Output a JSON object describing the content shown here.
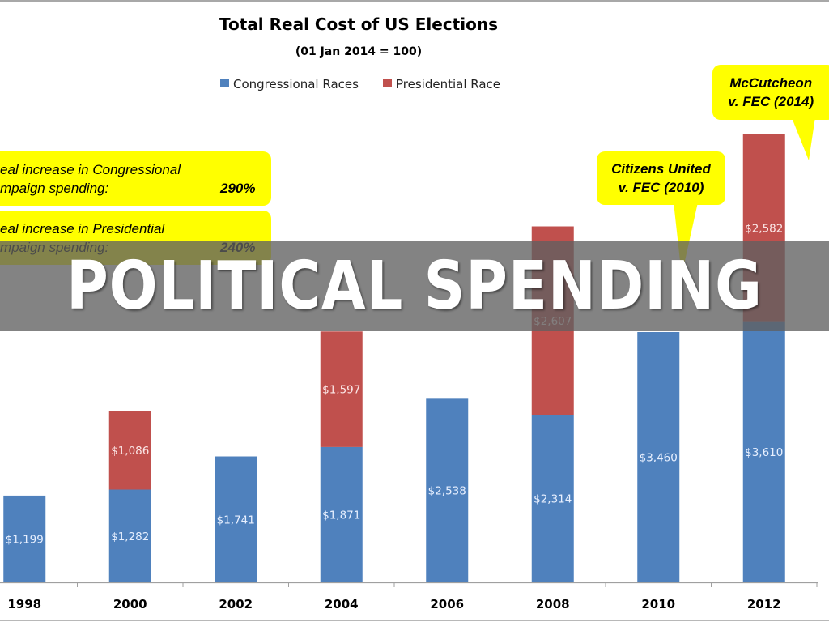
{
  "banner": {
    "text": "POLITICAL SPENDING"
  },
  "callouts": {
    "congressional": {
      "line1": "eal increase in Congressional",
      "line2": "mpaign spending:",
      "value": "290%"
    },
    "presidential": {
      "line1": "eal increase in Presidential",
      "line2": "mpaign spending:",
      "value": "240%"
    },
    "citizens_united": {
      "line1": "Citizens United",
      "line2": "v. FEC (2010)"
    },
    "mccutcheon": {
      "line1": "McCutcheon",
      "line2": "v. FEC (2014)"
    }
  },
  "colors": {
    "congressional": "#4f81bd",
    "presidential": "#c0504d",
    "callout": "#ffff00"
  },
  "chart_data": {
    "type": "bar",
    "stacked": true,
    "title": "Total Real Cost of US Elections",
    "subtitle": "(01 Jan 2014 = 100)",
    "xlabel": "",
    "ylabel": "",
    "legend_position": "top-center",
    "grid": false,
    "ylim": [
      0,
      6200
    ],
    "categories": [
      "1998",
      "2000",
      "2002",
      "2004",
      "2006",
      "2008",
      "2010",
      "2012"
    ],
    "series": [
      {
        "name": "Congressional Races",
        "color": "#4f81bd",
        "values": [
          1199,
          1282,
          1741,
          1871,
          2538,
          2314,
          3460,
          3610
        ],
        "labels": [
          "$1,199",
          "$1,282",
          "$1,741",
          "$1,871",
          "$2,538",
          "$2,314",
          "$3,460",
          "$3,610"
        ]
      },
      {
        "name": "Presidential Race",
        "color": "#c0504d",
        "values": [
          0,
          1086,
          0,
          1597,
          0,
          2607,
          0,
          2582
        ],
        "labels": [
          "",
          "$1,086",
          "",
          "$1,597",
          "",
          "$2,607",
          "",
          "$2,582"
        ]
      }
    ]
  }
}
